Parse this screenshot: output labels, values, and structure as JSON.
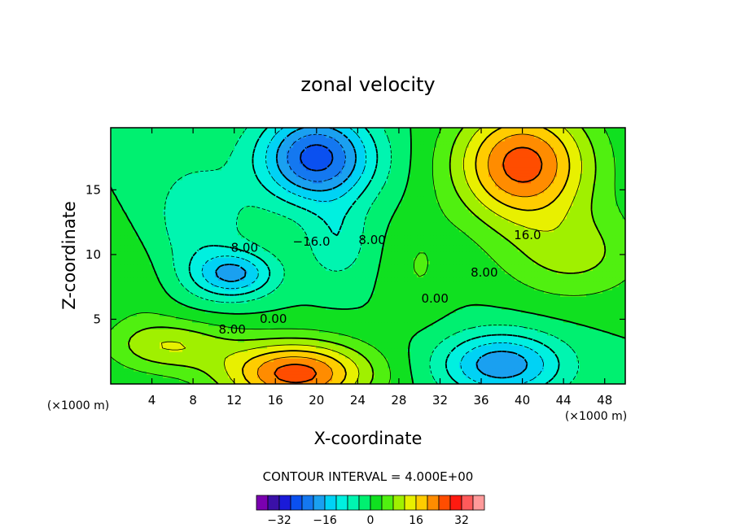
{
  "chart_data": {
    "type": "contour",
    "title": "zonal velocity",
    "xlabel": "X-coordinate",
    "ylabel": "Z-coordinate",
    "x_units": "(×1000 m)",
    "z_units": "(×1000 m)",
    "xlim": [
      0,
      50
    ],
    "ylim": [
      0,
      19.8
    ],
    "x_ticks": [
      4,
      8,
      12,
      16,
      20,
      24,
      28,
      32,
      36,
      40,
      44,
      48
    ],
    "y_ticks": [
      5,
      10,
      15
    ],
    "contour_interval_text": "CONTOUR INTERVAL = 4.000E+00",
    "contour_labels": [
      {
        "text": "8.00",
        "x": 13.0,
        "z": 10.2
      },
      {
        "text": "−16.0",
        "x": 19.5,
        "z": 10.7
      },
      {
        "text": "8.00",
        "x": 25.4,
        "z": 10.8
      },
      {
        "text": "0.00",
        "x": 31.5,
        "z": 6.3
      },
      {
        "text": "8.00",
        "x": 36.3,
        "z": 8.3
      },
      {
        "text": "16.0",
        "x": 40.5,
        "z": 11.2
      },
      {
        "text": "0.00",
        "x": 15.8,
        "z": 4.7
      },
      {
        "text": "8.00",
        "x": 11.8,
        "z": 3.9
      }
    ],
    "colorbar": {
      "levels": [
        -36,
        -32,
        -28,
        -24,
        -20,
        -16,
        -12,
        -8,
        -4,
        0,
        4,
        8,
        12,
        16,
        20,
        24,
        28,
        32,
        36
      ],
      "tick_labels": [
        "−32",
        "−16",
        "0",
        "16",
        "32"
      ],
      "tick_values": [
        -32,
        -16,
        0,
        16,
        32
      ]
    },
    "features": [
      {
        "kind": "jet",
        "sign": "negative",
        "x": 20,
        "z": 17.5,
        "max": -24
      },
      {
        "kind": "jet",
        "sign": "negative",
        "x": 12,
        "z": 8.5,
        "max": -12
      },
      {
        "kind": "jet",
        "sign": "positive",
        "x": 40,
        "z": 17,
        "max": 24
      },
      {
        "kind": "jet",
        "sign": "positive",
        "x": 18,
        "z": 1.0,
        "max": 24
      },
      {
        "kind": "jet",
        "sign": "negative",
        "x": 38,
        "z": 1.5,
        "max": -16
      }
    ]
  }
}
